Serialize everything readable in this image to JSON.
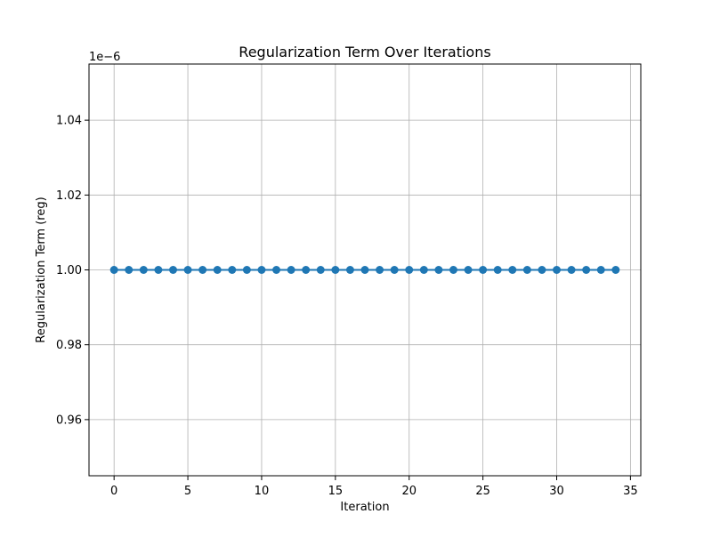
{
  "chart_data": {
    "type": "line",
    "title": "Regularization Term Over Iterations",
    "xlabel": "Iteration",
    "ylabel": "Regularization Term (reg)",
    "y_offset_label": "1e−6",
    "xlim": [
      -1.7,
      35.7
    ],
    "ylim": [
      0.945,
      1.055
    ],
    "x_ticks": [
      0,
      5,
      10,
      15,
      20,
      25,
      30,
      35
    ],
    "x_tick_labels": [
      "0",
      "5",
      "10",
      "15",
      "20",
      "25",
      "30",
      "35"
    ],
    "y_ticks": [
      0.96,
      0.98,
      1.0,
      1.02,
      1.04
    ],
    "y_tick_labels": [
      "0.96",
      "0.98",
      "1.00",
      "1.02",
      "1.04"
    ],
    "grid": true,
    "series": [
      {
        "color": "#1f77b4",
        "marker": "circle",
        "x": [
          0,
          1,
          2,
          3,
          4,
          5,
          6,
          7,
          8,
          9,
          10,
          11,
          12,
          13,
          14,
          15,
          16,
          17,
          18,
          19,
          20,
          21,
          22,
          23,
          24,
          25,
          26,
          27,
          28,
          29,
          30,
          31,
          32,
          33,
          34
        ],
        "values": [
          1.0,
          1.0,
          1.0,
          1.0,
          1.0,
          1.0,
          1.0,
          1.0,
          1.0,
          1.0,
          1.0,
          1.0,
          1.0,
          1.0,
          1.0,
          1.0,
          1.0,
          1.0,
          1.0,
          1.0,
          1.0,
          1.0,
          1.0,
          1.0,
          1.0,
          1.0,
          1.0,
          1.0,
          1.0,
          1.0,
          1.0,
          1.0,
          1.0,
          1.0,
          1.0
        ]
      }
    ]
  }
}
